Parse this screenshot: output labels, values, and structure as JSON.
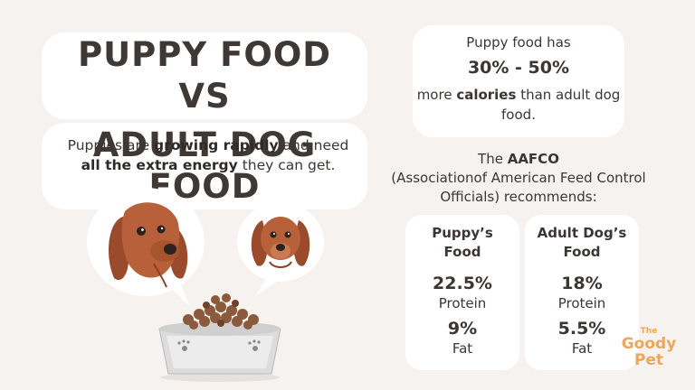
{
  "title": {
    "line1": "PUPPY FOOD VS",
    "line2": "ADULT DOG FOOD"
  },
  "subtitle": {
    "pre": "Puppies are ",
    "bold1": "growing rapidly",
    "mid": " and need",
    "bold2": "all the extra energy",
    "post": " they can get."
  },
  "calories": {
    "intro": "Puppy food has",
    "range": "30% - 50%",
    "pre": "more ",
    "bold": "calories",
    "post": " than adult dog food."
  },
  "aafco": {
    "pre": "The ",
    "bold": "AAFCO",
    "rest": "(Associationof American Feed Control Officials) recommends:"
  },
  "cards": {
    "puppy": {
      "header": "Puppy’s Food",
      "protein_value": "22.5%",
      "protein_label": "Protein",
      "fat_value": "9%",
      "fat_label": "Fat"
    },
    "adult": {
      "header": "Adult Dog’s Food",
      "protein_value": "18%",
      "protein_label": "Protein",
      "fat_value": "5.5%",
      "fat_label": "Fat"
    }
  },
  "logo": {
    "line1": "The",
    "line2": "Goody",
    "line3": "Pet"
  },
  "colors": {
    "background": "#f5f2ef",
    "card": "#ffffff",
    "text": "#3c3633",
    "dog_fur": "#b8603a",
    "logo": "#f0a65a"
  }
}
